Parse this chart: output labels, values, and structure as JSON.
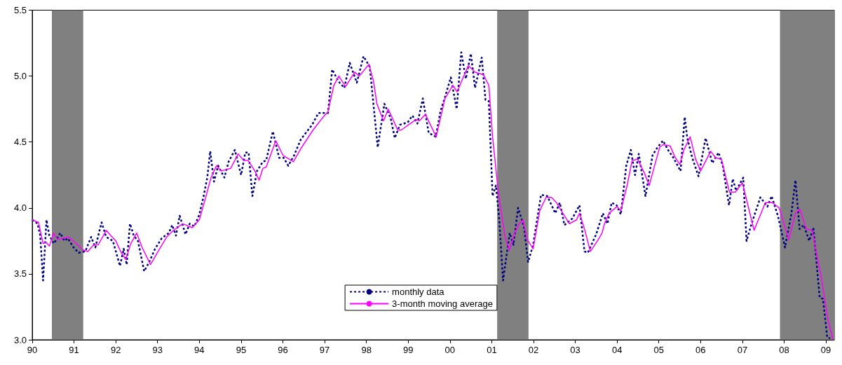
{
  "chart_data": {
    "type": "line",
    "xlim": [
      1990,
      2009.2
    ],
    "ylim": [
      3.0,
      5.5
    ],
    "xticks": [
      {
        "value": 1990,
        "label": "90"
      },
      {
        "value": 1991,
        "label": "91"
      },
      {
        "value": 1992,
        "label": "92"
      },
      {
        "value": 1993,
        "label": "93"
      },
      {
        "value": 1994,
        "label": "94"
      },
      {
        "value": 1995,
        "label": "95"
      },
      {
        "value": 1996,
        "label": "96"
      },
      {
        "value": 1997,
        "label": "97"
      },
      {
        "value": 1998,
        "label": "98"
      },
      {
        "value": 1999,
        "label": "99"
      },
      {
        "value": 2000,
        "label": "00"
      },
      {
        "value": 2001,
        "label": "01"
      },
      {
        "value": 2002,
        "label": "02"
      },
      {
        "value": 2003,
        "label": "03"
      },
      {
        "value": 2004,
        "label": "04"
      },
      {
        "value": 2005,
        "label": "05"
      },
      {
        "value": 2006,
        "label": "06"
      },
      {
        "value": 2007,
        "label": "07"
      },
      {
        "value": 2008,
        "label": "08"
      },
      {
        "value": 2009,
        "label": "09"
      }
    ],
    "yticks": [
      {
        "value": 3.0,
        "label": "3.0"
      },
      {
        "value": 3.5,
        "label": "3.5"
      },
      {
        "value": 4.0,
        "label": "4.0"
      },
      {
        "value": 4.5,
        "label": "4.5"
      },
      {
        "value": 5.0,
        "label": "5.0"
      },
      {
        "value": 5.5,
        "label": "5.5"
      }
    ],
    "grid": false,
    "legend": "bottom",
    "marker": "none",
    "bands": [
      {
        "axis": "x",
        "from": 1990.47,
        "to": 1991.22,
        "color": "#808080"
      },
      {
        "axis": "x",
        "from": 2001.13,
        "to": 2001.88,
        "color": "#808080"
      },
      {
        "axis": "x",
        "from": 2007.9,
        "to": 2009.2,
        "color": "#808080"
      }
    ],
    "series": [
      {
        "name": "monthly data",
        "color": "#000080",
        "line_style": "dotted",
        "x": [
          1990,
          1990.13,
          1990.19,
          1990.26,
          1990.34,
          1990.41,
          1990.52,
          1990.67,
          1990.77,
          1990.85,
          1990.99,
          1991.11,
          1991.27,
          1991.41,
          1991.51,
          1991.66,
          1991.77,
          1991.93,
          1992.1,
          1992.19,
          1992.26,
          1992.34,
          1992.43,
          1992.53,
          1992.68,
          1992.8,
          1992.94,
          1993.1,
          1993.27,
          1993.35,
          1993.44,
          1993.53,
          1993.67,
          1993.77,
          1993.88,
          1994,
          1994.11,
          1994.19,
          1994.26,
          1994.35,
          1994.45,
          1994.6,
          1994.7,
          1994.85,
          1995,
          1995.1,
          1995.18,
          1995.27,
          1995.38,
          1995.52,
          1995.6,
          1995.76,
          1995.91,
          1996.02,
          1996.13,
          1996.27,
          1996.43,
          1996.6,
          1996.7,
          1996.85,
          1997.08,
          1997.18,
          1997.33,
          1997.47,
          1997.6,
          1997.77,
          1997.93,
          1998.08,
          1998.27,
          1998.43,
          1998.58,
          1998.68,
          1998.8,
          1998.99,
          1999.1,
          1999.22,
          1999.35,
          1999.49,
          1999.66,
          1999.77,
          1999.88,
          2000.02,
          2000.16,
          2000.27,
          2000.38,
          2000.5,
          2000.6,
          2000.76,
          2000.85,
          2000.93,
          2001.02,
          2001.1,
          2001.18,
          2001.27,
          2001.43,
          2001.52,
          2001.63,
          2001.77,
          2001.87,
          2001.99,
          2002.18,
          2002.33,
          2002.52,
          2002.63,
          2002.74,
          2002.93,
          2003.1,
          2003.22,
          2003.3,
          2003.5,
          2003.66,
          2003.77,
          2003.87,
          2003.99,
          2004.09,
          2004.22,
          2004.33,
          2004.43,
          2004.52,
          2004.6,
          2004.68,
          2004.85,
          2004.97,
          2005.1,
          2005.22,
          2005.35,
          2005.52,
          2005.62,
          2005.68,
          2005.8,
          2005.95,
          2006.12,
          2006.28,
          2006.43,
          2006.53,
          2006.68,
          2006.77,
          2006.85,
          2007.02,
          2007.1,
          2007.22,
          2007.43,
          2007.6,
          2007.7,
          2007.85,
          2008.02,
          2008.17,
          2008.27,
          2008.37,
          2008.47,
          2008.6,
          2008.7,
          2008.85,
          2008.93,
          2009.03,
          2009.1
        ],
        "values": [
          3.91,
          3.88,
          3.79,
          3.45,
          3.91,
          3.79,
          3.73,
          3.81,
          3.75,
          3.77,
          3.7,
          3.66,
          3.67,
          3.78,
          3.7,
          3.89,
          3.78,
          3.75,
          3.56,
          3.69,
          3.57,
          3.88,
          3.79,
          3.75,
          3.52,
          3.59,
          3.69,
          3.77,
          3.81,
          3.87,
          3.79,
          3.94,
          3.8,
          3.88,
          3.86,
          3.95,
          4.1,
          4.23,
          4.43,
          4.2,
          4.32,
          4.23,
          4.35,
          4.44,
          4.25,
          4.42,
          4.42,
          4.09,
          4.28,
          4.35,
          4.36,
          4.58,
          4.38,
          4.38,
          4.32,
          4.4,
          4.52,
          4.59,
          4.63,
          4.72,
          4.72,
          5.05,
          4.96,
          4.91,
          5.1,
          4.95,
          5.15,
          5.07,
          4.46,
          4.79,
          4.68,
          4.53,
          4.63,
          4.65,
          4.7,
          4.64,
          4.83,
          4.57,
          4.54,
          4.73,
          4.84,
          4.99,
          4.75,
          5.18,
          4.98,
          5.17,
          4.91,
          5.14,
          4.82,
          4.81,
          4.09,
          4.17,
          3.91,
          3.45,
          3.81,
          3.72,
          4.0,
          3.86,
          3.59,
          3.72,
          4.1,
          4.09,
          3.96,
          4.04,
          3.87,
          3.92,
          4.02,
          3.67,
          3.66,
          3.8,
          3.96,
          3.88,
          4.04,
          4.02,
          3.95,
          4.32,
          4.44,
          4.25,
          4.41,
          4.25,
          4.09,
          4.4,
          4.46,
          4.51,
          4.44,
          4.38,
          4.28,
          4.69,
          4.53,
          4.38,
          4.24,
          4.53,
          4.34,
          4.42,
          4.32,
          4.02,
          4.22,
          4.13,
          4.23,
          3.75,
          3.88,
          4.08,
          4.01,
          4.09,
          3.94,
          3.7,
          3.95,
          4.21,
          3.84,
          3.87,
          3.75,
          3.85,
          3.32,
          3.31,
          3.02,
          3.01
        ]
      },
      {
        "name": "3-month moving average",
        "color": "#ff00ff",
        "line_style": "solid",
        "x": [
          1990,
          1990.15,
          1990.26,
          1990.33,
          1990.41,
          1990.51,
          1990.61,
          1990.86,
          1991.02,
          1991.22,
          1991.33,
          1991.47,
          1991.58,
          1991.77,
          1991.88,
          1992,
          1992.13,
          1992.24,
          1992.36,
          1992.5,
          1992.63,
          1992.83,
          1993.05,
          1993.22,
          1993.38,
          1993.6,
          1993.83,
          1994,
          1994.16,
          1994.28,
          1994.41,
          1994.52,
          1994.75,
          1994.93,
          1995.06,
          1995.17,
          1995.33,
          1995.43,
          1995.52,
          1995.6,
          1995.83,
          1996,
          1996.25,
          1996.45,
          1996.72,
          1996.94,
          1997.08,
          1997.22,
          1997.34,
          1997.5,
          1997.72,
          1997.83,
          1998.06,
          1998.17,
          1998.25,
          1998.41,
          1998.52,
          1998.75,
          1998.83,
          1999.05,
          1999.19,
          1999.27,
          1999.41,
          1999.67,
          1999.88,
          2000.07,
          2000.17,
          2000.29,
          2000.44,
          2000.6,
          2000.8,
          2000.93,
          2001.02,
          2001.16,
          2001.32,
          2001.42,
          2001.55,
          2001.66,
          2001.75,
          2001.85,
          2001.99,
          2002.15,
          2002.3,
          2002.43,
          2002.55,
          2002.72,
          2002.86,
          2003.03,
          2003.1,
          2003.22,
          2003.36,
          2003.53,
          2003.64,
          2003.7,
          2003.81,
          2004,
          2004.09,
          2004.24,
          2004.36,
          2004.49,
          2004.66,
          2004.77,
          2004.88,
          2005.02,
          2005.1,
          2005.27,
          2005.38,
          2005.5,
          2005.6,
          2005.75,
          2005.88,
          2006,
          2006.24,
          2006.36,
          2006.5,
          2006.69,
          2006.83,
          2007,
          2007.28,
          2007.55,
          2007.72,
          2007.88,
          2008.11,
          2008.27,
          2008.38,
          2008.53,
          2008.67,
          2008.88,
          2009.05,
          2009.17
        ],
        "values": [
          3.91,
          3.89,
          3.73,
          3.74,
          3.71,
          3.81,
          3.76,
          3.78,
          3.74,
          3.68,
          3.67,
          3.72,
          3.72,
          3.83,
          3.79,
          3.75,
          3.66,
          3.61,
          3.73,
          3.81,
          3.7,
          3.57,
          3.69,
          3.78,
          3.83,
          3.88,
          3.85,
          3.91,
          4.09,
          4.23,
          4.32,
          4.28,
          4.3,
          4.41,
          4.36,
          4.36,
          4.28,
          4.21,
          4.3,
          4.31,
          4.51,
          4.4,
          4.35,
          4.46,
          4.59,
          4.68,
          4.73,
          4.93,
          5.0,
          4.92,
          5.03,
          5.0,
          5.09,
          4.96,
          4.79,
          4.66,
          4.75,
          4.59,
          4.59,
          4.64,
          4.67,
          4.66,
          4.71,
          4.54,
          4.83,
          4.93,
          4.88,
          4.97,
          5.08,
          5.03,
          5.01,
          4.93,
          4.54,
          4.11,
          3.78,
          3.68,
          3.81,
          3.88,
          3.91,
          3.76,
          3.69,
          3.98,
          4.08,
          4.08,
          4.04,
          3.95,
          3.88,
          3.91,
          3.96,
          3.84,
          3.67,
          3.75,
          3.81,
          3.88,
          3.96,
          4.01,
          3.98,
          4.17,
          4.36,
          4.37,
          4.26,
          4.17,
          4.3,
          4.46,
          4.48,
          4.47,
          4.39,
          4.33,
          4.44,
          4.54,
          4.37,
          4.28,
          4.43,
          4.38,
          4.37,
          4.12,
          4.12,
          4.19,
          3.83,
          4.04,
          4.04,
          4.0,
          3.76,
          3.96,
          3.99,
          3.84,
          3.83,
          3.49,
          3.15,
          3.0
        ]
      }
    ]
  }
}
